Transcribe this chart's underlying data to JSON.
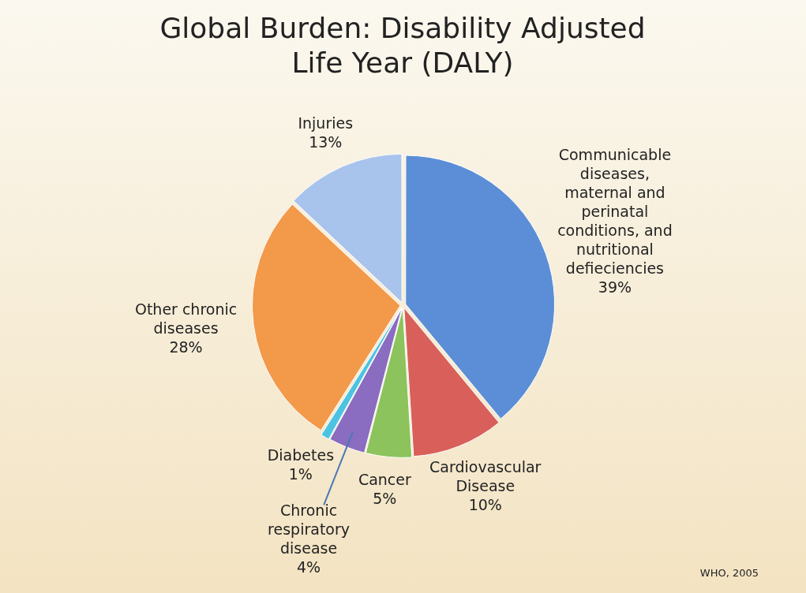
{
  "chart_data": {
    "type": "pie",
    "title": "Global Burden: Disability Adjusted Life Year (DALY)",
    "categories": [
      "Communicable diseases, maternal and perinatal conditions, and nutritional defieciencies",
      "Cardiovascular Disease",
      "Cancer",
      "Chronic respiratory disease",
      "Diabetes",
      "Other chronic diseases",
      "Injuries"
    ],
    "values": [
      39,
      10,
      5,
      4,
      1,
      28,
      13
    ],
    "value_labels": [
      "39%",
      "10%",
      "5%",
      "4%",
      "1%",
      "28%",
      "13%"
    ],
    "colors": [
      "#5b8ed6",
      "#d9605a",
      "#8cc35c",
      "#8a6cc0",
      "#4cc3e2",
      "#f2994a",
      "#a8c3ec"
    ],
    "legend": false,
    "annotations": [
      "WHO, 2005"
    ]
  }
}
